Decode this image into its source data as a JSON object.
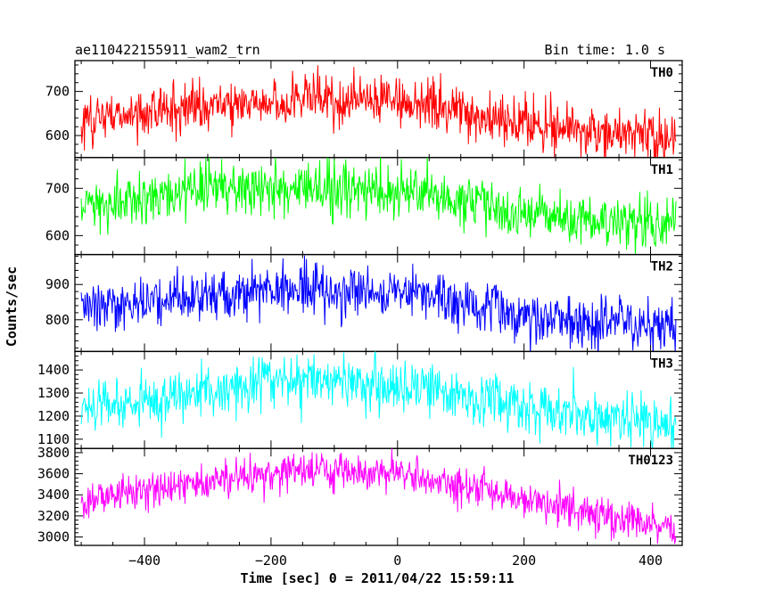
{
  "chart_data": {
    "type": "line",
    "title": "ae110422155911_wam2_trn",
    "bin_label": "Bin time: 1.0 s",
    "xlabel": "Time [sec] 0 = 2011/04/22 15:59:11",
    "ylabel": "Counts/sec",
    "xlim": [
      -510,
      450
    ],
    "x_range_data": [
      -500,
      440
    ],
    "x_ticks": [
      -400,
      -200,
      0,
      200,
      400
    ],
    "x_tick_labels": [
      "−400",
      "−200",
      "0",
      "200",
      "400"
    ],
    "grid": false,
    "series": [
      {
        "name": "TH0",
        "color": "#ff0000",
        "ylim": [
          550,
          770
        ],
        "y_ticks": [
          600,
          700
        ],
        "y_tick_labels": [
          "600",
          "700"
        ],
        "trend_x": [
          -500,
          -300,
          -100,
          50,
          200,
          440
        ],
        "trend_y": [
          630,
          670,
          680,
          675,
          625,
          590
        ],
        "noise": 28
      },
      {
        "name": "TH1",
        "color": "#00ff00",
        "ylim": [
          560,
          765
        ],
        "y_ticks": [
          600,
          700
        ],
        "y_tick_labels": [
          "600",
          "700"
        ],
        "trend_x": [
          -500,
          -300,
          -150,
          50,
          200,
          440
        ],
        "trend_y": [
          660,
          700,
          705,
          690,
          645,
          620
        ],
        "noise": 28
      },
      {
        "name": "TH2",
        "color": "#0000ff",
        "ylim": [
          710,
          985
        ],
        "y_ticks": [
          800,
          900
        ],
        "y_tick_labels": [
          "800",
          "900"
        ],
        "trend_x": [
          -500,
          -300,
          -150,
          50,
          200,
          440
        ],
        "trend_y": [
          835,
          870,
          890,
          870,
          810,
          780
        ],
        "noise": 35
      },
      {
        "name": "TH3",
        "color": "#00ffff",
        "ylim": [
          1060,
          1480
        ],
        "y_ticks": [
          1100,
          1200,
          1300,
          1400
        ],
        "y_tick_labels": [
          "1100",
          "1200",
          "1300",
          "1400"
        ],
        "trend_x": [
          -500,
          -300,
          -150,
          0,
          200,
          440
        ],
        "trend_y": [
          1240,
          1310,
          1360,
          1340,
          1240,
          1160
        ],
        "noise": 55
      },
      {
        "name": "TH0123",
        "color": "#ff00ff",
        "ylim": [
          2920,
          3840
        ],
        "y_ticks": [
          3000,
          3200,
          3400,
          3600,
          3800
        ],
        "y_tick_labels": [
          "3000",
          "3200",
          "3400",
          "3600",
          "3800"
        ],
        "trend_x": [
          -500,
          -300,
          -150,
          0,
          200,
          440
        ],
        "trend_y": [
          3330,
          3520,
          3650,
          3600,
          3350,
          3080
        ],
        "noise": 85
      }
    ]
  }
}
